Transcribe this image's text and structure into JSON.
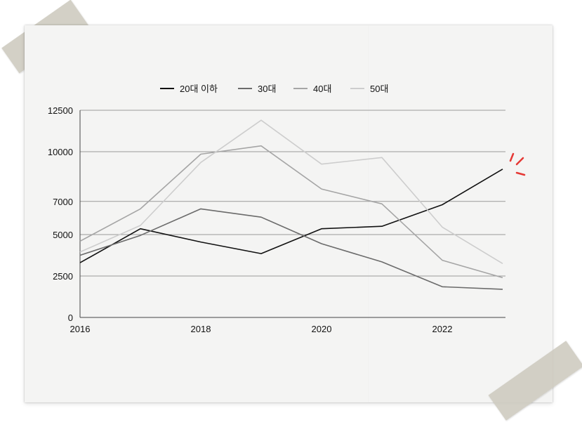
{
  "chart_data": {
    "type": "line",
    "title": "",
    "xlabel": "",
    "ylabel": "",
    "x": [
      2016,
      2017,
      2018,
      2019,
      2020,
      2021,
      2022,
      2023
    ],
    "x_ticks": [
      "2016",
      "2018",
      "2020",
      "2022"
    ],
    "y_ticks": [
      "0",
      "2500",
      "5000",
      "7000",
      "10000",
      "12500"
    ],
    "ylim": [
      0,
      12500
    ],
    "grid": "horizontal",
    "legend_position": "top",
    "series": [
      {
        "name": "20대 이하",
        "color": "#111111",
        "values": [
          3300,
          5350,
          4550,
          3850,
          5350,
          5500,
          6800,
          8950
        ]
      },
      {
        "name": "30대",
        "color": "#6b6b6b",
        "values": [
          3750,
          4950,
          6550,
          6050,
          4450,
          3350,
          1850,
          1700
        ]
      },
      {
        "name": "40대",
        "color": "#a5a5a5",
        "values": [
          4600,
          6550,
          9850,
          10350,
          7750,
          6850,
          3450,
          2400
        ]
      },
      {
        "name": "50대",
        "color": "#cdcdcd",
        "values": [
          3950,
          5550,
          9350,
          11900,
          9250,
          9650,
          5450,
          3250
        ]
      }
    ]
  }
}
